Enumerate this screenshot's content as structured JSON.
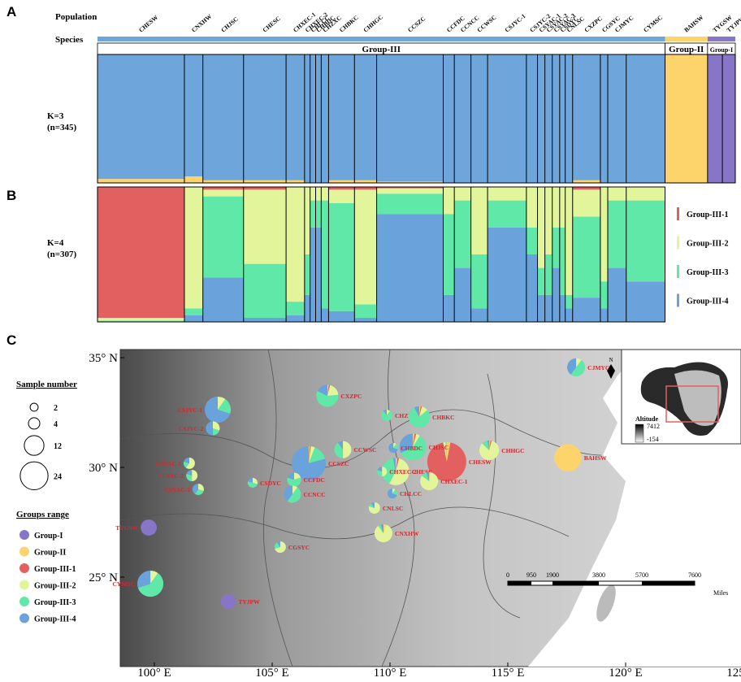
{
  "panels": {
    "a": "A",
    "b": "B",
    "c": "C"
  },
  "header": {
    "population": "Population",
    "species": "Species"
  },
  "k3": {
    "label": "K=3",
    "n": "(n=345)"
  },
  "k4": {
    "label": "K=4",
    "n": "(n=307)"
  },
  "species_groups": [
    {
      "name": "Group-III",
      "color": "#6ea6dc"
    },
    {
      "name": "Group-II",
      "color": "#fdd46b"
    },
    {
      "name": "Group-I",
      "color": "#8775c8"
    }
  ],
  "k4_groups": [
    {
      "name": "Group-III-1",
      "color": "#e2605f"
    },
    {
      "name": "Group-III-2",
      "color": "#e3f59b"
    },
    {
      "name": "Group-III-3",
      "color": "#5fe8a7"
    },
    {
      "name": "Group-III-4",
      "color": "#6aa2dc"
    }
  ],
  "populations": [
    {
      "name": "CHESW",
      "n": 47,
      "k3": [
        0.97,
        0.03,
        0
      ],
      "k4": [
        0.97,
        0.02,
        0.01,
        0
      ],
      "lon": 112.41,
      "lat": 30.26
    },
    {
      "name": "CNXHW",
      "n": 10,
      "k3": [
        0.95,
        0.05,
        0
      ],
      "k4": [
        0,
        0.9,
        0.05,
        0.05
      ],
      "lon": 109.72,
      "lat": 27.0
    },
    {
      "name": "CHJSC",
      "n": 22,
      "k3": [
        0.98,
        0.02,
        0
      ],
      "k4": [
        0.02,
        0.05,
        0.6,
        0.33
      ],
      "lon": 110.97,
      "lat": 30.93
    },
    {
      "name": "CHESC",
      "n": 23,
      "k3": [
        0.98,
        0.02,
        0
      ],
      "k4": [
        0.02,
        0.55,
        0.4,
        0.03
      ],
      "lon": 110.24,
      "lat": 29.81
    },
    {
      "name": "CHXEC-1",
      "n": 10,
      "k3": [
        0.98,
        0.02,
        0
      ],
      "k4": [
        0,
        0.85,
        0.1,
        0.05
      ],
      "lon": 111.66,
      "lat": 29.37
    },
    {
      "name": "CHXEC-2",
      "n": 3,
      "k3": [
        1,
        0,
        0
      ],
      "k4": [
        0,
        0.5,
        0.3,
        0.2
      ],
      "lon": 109.66,
      "lat": 29.81
    },
    {
      "name": "CHLCC",
      "n": 3,
      "k3": [
        1,
        0,
        0
      ],
      "k4": [
        0,
        0.1,
        0.2,
        0.7
      ],
      "lon": 110.1,
      "lat": 28.81
    },
    {
      "name": "CHBDC",
      "n": 3,
      "k3": [
        1,
        0,
        0
      ],
      "k4": [
        0,
        0.1,
        0.2,
        0.7
      ],
      "lon": 110.14,
      "lat": 30.89
    },
    {
      "name": "CHZXC",
      "n": 4,
      "k3": [
        1,
        0,
        0
      ],
      "k4": [
        0,
        0.1,
        0.8,
        0.1
      ],
      "lon": 109.86,
      "lat": 32.37
    },
    {
      "name": "CHBKC",
      "n": 14,
      "k3": [
        0.98,
        0.02,
        0
      ],
      "k4": [
        0.02,
        0.1,
        0.8,
        0.08
      ],
      "lon": 111.24,
      "lat": 32.3
    },
    {
      "name": "CHHGC",
      "n": 12,
      "k3": [
        0.98,
        0.02,
        0
      ],
      "k4": [
        0.02,
        0.85,
        0.1,
        0.03
      ],
      "lon": 114.21,
      "lat": 30.78
    },
    {
      "name": "CCSZC",
      "n": 36,
      "k3": [
        0.99,
        0.01,
        0
      ],
      "k4": [
        0.01,
        0.04,
        0.15,
        0.8
      ],
      "lon": 106.55,
      "lat": 30.19
    },
    {
      "name": "CCFDC",
      "n": 6,
      "k3": [
        1,
        0,
        0
      ],
      "k4": [
        0,
        0.2,
        0.6,
        0.2
      ],
      "lon": 105.93,
      "lat": 29.44
    },
    {
      "name": "CCNCC",
      "n": 9,
      "k3": [
        1,
        0,
        0
      ],
      "k4": [
        0,
        0.1,
        0.5,
        0.4
      ],
      "lon": 105.86,
      "lat": 28.78
    },
    {
      "name": "CCWSC",
      "n": 9,
      "k3": [
        1,
        0,
        0
      ],
      "k4": [
        0,
        0.5,
        0.4,
        0.1
      ],
      "lon": 108.0,
      "lat": 30.81
    },
    {
      "name": "CSJYC-1",
      "n": 21,
      "k3": [
        1,
        0,
        0
      ],
      "k4": [
        0,
        0.1,
        0.2,
        0.7
      ],
      "lon": 102.69,
      "lat": 32.63
    },
    {
      "name": "CSJYC-2",
      "n": 6,
      "k3": [
        1,
        0,
        0
      ],
      "k4": [
        0,
        0.3,
        0.2,
        0.5
      ],
      "lon": 102.48,
      "lat": 31.78
    },
    {
      "name": "CSYAC-1",
      "n": 4,
      "k3": [
        1,
        0,
        0
      ],
      "k4": [
        0,
        0.6,
        0.2,
        0.2
      ],
      "lon": 101.48,
      "lat": 30.19
    },
    {
      "name": "CSYAC-2",
      "n": 4,
      "k3": [
        1,
        0,
        0
      ],
      "k4": [
        0,
        0.5,
        0.3,
        0.2
      ],
      "lon": 101.59,
      "lat": 29.63
    },
    {
      "name": "CSYAC-3",
      "n": 4,
      "k3": [
        1,
        0,
        0
      ],
      "k4": [
        0,
        0.3,
        0.3,
        0.4
      ],
      "lon": 101.86,
      "lat": 29.0
    },
    {
      "name": "CSDYC",
      "n": 3,
      "k3": [
        1,
        0,
        0
      ],
      "k4": [
        0,
        0.3,
        0.5,
        0.2
      ],
      "lon": 104.17,
      "lat": 29.3
    },
    {
      "name": "CNLSC",
      "n": 4,
      "k3": [
        1,
        0,
        0
      ],
      "k4": [
        0,
        0.8,
        0.1,
        0.1
      ],
      "lon": 109.34,
      "lat": 28.15
    },
    {
      "name": "CXZPC",
      "n": 15,
      "k3": [
        0.98,
        0.02,
        0
      ],
      "k4": [
        0.02,
        0.2,
        0.6,
        0.18
      ],
      "lon": 107.34,
      "lat": 33.26
    },
    {
      "name": "CGSYC",
      "n": 4,
      "k3": [
        1,
        0,
        0
      ],
      "k4": [
        0,
        0.7,
        0.2,
        0.1
      ],
      "lon": 105.34,
      "lat": 26.37
    },
    {
      "name": "CJMYC",
      "n": 10,
      "k3": [
        1,
        0,
        0
      ],
      "k4": [
        0,
        0.1,
        0.5,
        0.4
      ],
      "lon": 117.9,
      "lat": 34.56
    },
    {
      "name": "CYMSC",
      "n": 21,
      "k3": [
        1,
        0,
        0
      ],
      "k4": [
        0,
        0.1,
        0.6,
        0.3
      ],
      "lon": 99.83,
      "lat": 24.7
    },
    {
      "name": "BAHSW",
      "n": 23,
      "k3": [
        0,
        1,
        0
      ],
      "k4": null,
      "lon": 117.55,
      "lat": 30.44
    },
    {
      "name": "TYGSW",
      "n": 8,
      "k3": [
        0,
        0,
        1
      ],
      "k4": null,
      "lon": 99.76,
      "lat": 27.26
    },
    {
      "name": "TYJPW",
      "n": 7,
      "k3": [
        0,
        0,
        1
      ],
      "k4": null,
      "lon": 103.14,
      "lat": 23.89
    }
  ],
  "map": {
    "lon_ticks": [
      {
        "value": 100,
        "label": "100° E"
      },
      {
        "value": 105,
        "label": "105° E"
      },
      {
        "value": 110,
        "label": "110° E"
      },
      {
        "value": 115,
        "label": "115° E"
      },
      {
        "value": 120,
        "label": "120° E"
      },
      {
        "value": 125,
        "label": "125° E"
      }
    ],
    "lat_ticks": [
      {
        "value": 35,
        "label": "35° N"
      },
      {
        "value": 30,
        "label": "30° N"
      },
      {
        "value": 25,
        "label": "25° N"
      }
    ],
    "sample_legend": {
      "title": "Sample number",
      "values": [
        2,
        4,
        12,
        24
      ]
    },
    "groups_legend": {
      "title": "Groups range"
    },
    "inset": {
      "north": "N",
      "altitude": "Altitude",
      "max": "7412",
      "min": "-154"
    },
    "scale": {
      "ticks": [
        "0",
        "950",
        "1900",
        "3800",
        "5700",
        "7600"
      ],
      "unit": "Miles"
    }
  }
}
